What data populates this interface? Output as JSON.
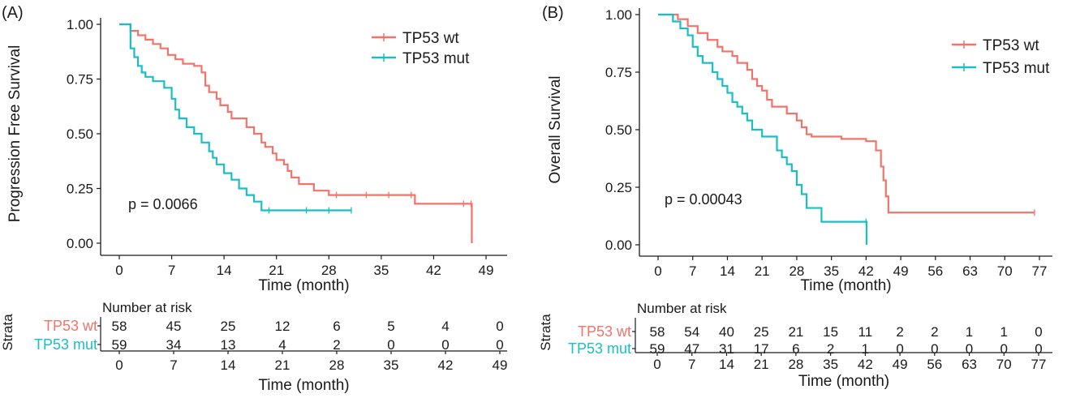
{
  "colors": {
    "wt": "#F2736A",
    "mut": "#19BFC4",
    "axis": "#1a1a1a"
  },
  "chart_data": [
    {
      "panel_label": "(A)",
      "type": "line",
      "ylabel": "Progression Free Survival",
      "xlabel": "Time (month)",
      "xlim": [
        0,
        49
      ],
      "ylim": [
        0,
        1
      ],
      "xticks": [
        "0",
        "7",
        "14",
        "21",
        "28",
        "35",
        "42",
        "49"
      ],
      "yticks": [
        "0.00",
        "0.25",
        "0.50",
        "0.75",
        "1.00"
      ],
      "pvalue": "p = 0.0066",
      "legend_position": "top-right",
      "series": [
        {
          "name": "TP53 wt",
          "color": "#F2736A",
          "x": [
            0,
            1.5,
            2.5,
            3.5,
            4.5,
            5.5,
            6.5,
            7.5,
            8.5,
            10,
            11,
            11.5,
            12,
            13,
            13.5,
            14.5,
            15,
            17,
            18,
            19,
            19.5,
            20.5,
            21,
            22,
            22.5,
            23,
            24,
            26,
            28,
            29,
            33,
            36,
            39,
            39.5,
            46,
            47,
            47.1
          ],
          "y": [
            1,
            0.97,
            0.95,
            0.93,
            0.91,
            0.89,
            0.86,
            0.84,
            0.82,
            0.81,
            0.78,
            0.72,
            0.69,
            0.66,
            0.63,
            0.6,
            0.57,
            0.53,
            0.5,
            0.46,
            0.44,
            0.41,
            0.38,
            0.36,
            0.33,
            0.3,
            0.27,
            0.24,
            0.22,
            0.22,
            0.22,
            0.22,
            0.22,
            0.18,
            0.18,
            0.18,
            0
          ]
        },
        {
          "name": "TP53 mut",
          "color": "#19BFC4",
          "x": [
            0,
            1.5,
            2,
            2.5,
            3,
            3.5,
            4.5,
            6,
            7,
            7.5,
            8,
            9,
            10,
            11,
            12,
            12.5,
            13,
            14,
            15,
            16,
            17,
            18,
            19,
            20,
            25,
            28,
            31
          ],
          "y": [
            1,
            0.89,
            0.85,
            0.81,
            0.78,
            0.76,
            0.74,
            0.71,
            0.66,
            0.61,
            0.57,
            0.53,
            0.5,
            0.46,
            0.42,
            0.39,
            0.36,
            0.32,
            0.29,
            0.25,
            0.22,
            0.19,
            0.15,
            0.15,
            0.15,
            0.15,
            0.15
          ]
        }
      ],
      "risk_table": {
        "title": "Number at risk",
        "strata_label": "Strata",
        "xlabel": "Time (month)",
        "times": [
          "0",
          "7",
          "14",
          "21",
          "28",
          "35",
          "42",
          "49"
        ],
        "rows": [
          {
            "name": "TP53 wt",
            "values": [
              "58",
              "45",
              "25",
              "12",
              "6",
              "5",
              "4",
              "0"
            ]
          },
          {
            "name": "TP53 mut",
            "values": [
              "59",
              "34",
              "13",
              "4",
              "2",
              "0",
              "0",
              "0"
            ]
          }
        ]
      }
    },
    {
      "panel_label": "(B)",
      "type": "line",
      "ylabel": "Overall Survival",
      "xlabel": "Time (month)",
      "xlim": [
        0,
        77
      ],
      "ylim": [
        0,
        1
      ],
      "xticks": [
        "0",
        "7",
        "14",
        "21",
        "28",
        "35",
        "42",
        "49",
        "56",
        "63",
        "70",
        "77"
      ],
      "yticks": [
        "0.00",
        "0.25",
        "0.50",
        "0.75",
        "1.00"
      ],
      "pvalue": "p = 0.00043",
      "legend_position": "top-right",
      "series": [
        {
          "name": "TP53 wt",
          "color": "#F2736A",
          "x": [
            0,
            4,
            6,
            8,
            10,
            12,
            13,
            15,
            16,
            18,
            19,
            20,
            21,
            22,
            23,
            26,
            28,
            29,
            30,
            31,
            37,
            42,
            44,
            45,
            45.5,
            46,
            46.5,
            76
          ],
          "y": [
            1,
            0.98,
            0.95,
            0.92,
            0.89,
            0.86,
            0.84,
            0.82,
            0.79,
            0.76,
            0.72,
            0.69,
            0.67,
            0.63,
            0.6,
            0.57,
            0.54,
            0.51,
            0.48,
            0.47,
            0.46,
            0.45,
            0.41,
            0.34,
            0.28,
            0.21,
            0.14,
            0.14
          ]
        },
        {
          "name": "TP53 mut",
          "color": "#19BFC4",
          "x": [
            0,
            3,
            4.5,
            6,
            7,
            8,
            9,
            11,
            12,
            13,
            14,
            15,
            16,
            17,
            18,
            19,
            21,
            24,
            25,
            26,
            27,
            28,
            29,
            30,
            33,
            42,
            42.1
          ],
          "y": [
            1,
            0.97,
            0.94,
            0.91,
            0.86,
            0.82,
            0.79,
            0.75,
            0.72,
            0.69,
            0.66,
            0.62,
            0.6,
            0.57,
            0.54,
            0.5,
            0.47,
            0.41,
            0.38,
            0.35,
            0.32,
            0.26,
            0.22,
            0.16,
            0.1,
            0.1,
            0
          ]
        }
      ],
      "risk_table": {
        "title": "Number at risk",
        "strata_label": "Strata",
        "xlabel": "Time (month)",
        "times": [
          "0",
          "7",
          "14",
          "21",
          "28",
          "35",
          "42",
          "49",
          "56",
          "63",
          "70",
          "77"
        ],
        "rows": [
          {
            "name": "TP53 wt",
            "values": [
              "58",
              "54",
              "40",
              "25",
              "21",
              "15",
              "11",
              "2",
              "2",
              "1",
              "1",
              "0"
            ]
          },
          {
            "name": "TP53 mut",
            "values": [
              "59",
              "47",
              "31",
              "17",
              "6",
              "2",
              "1",
              "0",
              "0",
              "0",
              "0",
              "0"
            ]
          }
        ]
      }
    }
  ]
}
